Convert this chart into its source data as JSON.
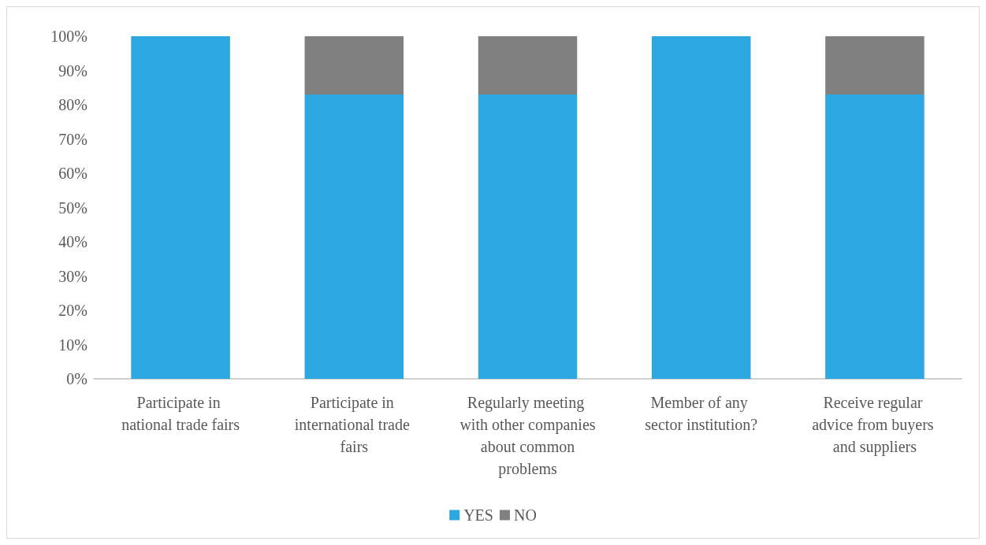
{
  "chart_data": {
    "type": "bar",
    "stacked": true,
    "categories": [
      "Participate in national trade fairs",
      "Participate in international trade fairs",
      "Regularly meeting with other companies about common problems",
      "Member of any sector institution?",
      "Receive regular advice from buyers and suppliers"
    ],
    "series": [
      {
        "name": "YES",
        "color": "#2ca7e0",
        "values": [
          100,
          83,
          83,
          100,
          83
        ]
      },
      {
        "name": "NO",
        "color": "#808080",
        "values": [
          0,
          17,
          17,
          0,
          17
        ]
      }
    ],
    "ylim": [
      0,
      100
    ],
    "yticks": [
      {
        "value": 0,
        "label": "0%"
      },
      {
        "value": 10,
        "label": "10%"
      },
      {
        "value": 20,
        "label": "20%"
      },
      {
        "value": 30,
        "label": "30%"
      },
      {
        "value": 40,
        "label": "40%"
      },
      {
        "value": 50,
        "label": "50%"
      },
      {
        "value": 60,
        "label": "60%"
      },
      {
        "value": 70,
        "label": "70%"
      },
      {
        "value": 80,
        "label": "80%"
      },
      {
        "value": 90,
        "label": "90%"
      },
      {
        "value": 100,
        "label": "100%"
      }
    ],
    "grid": false,
    "legend": "bottom"
  }
}
